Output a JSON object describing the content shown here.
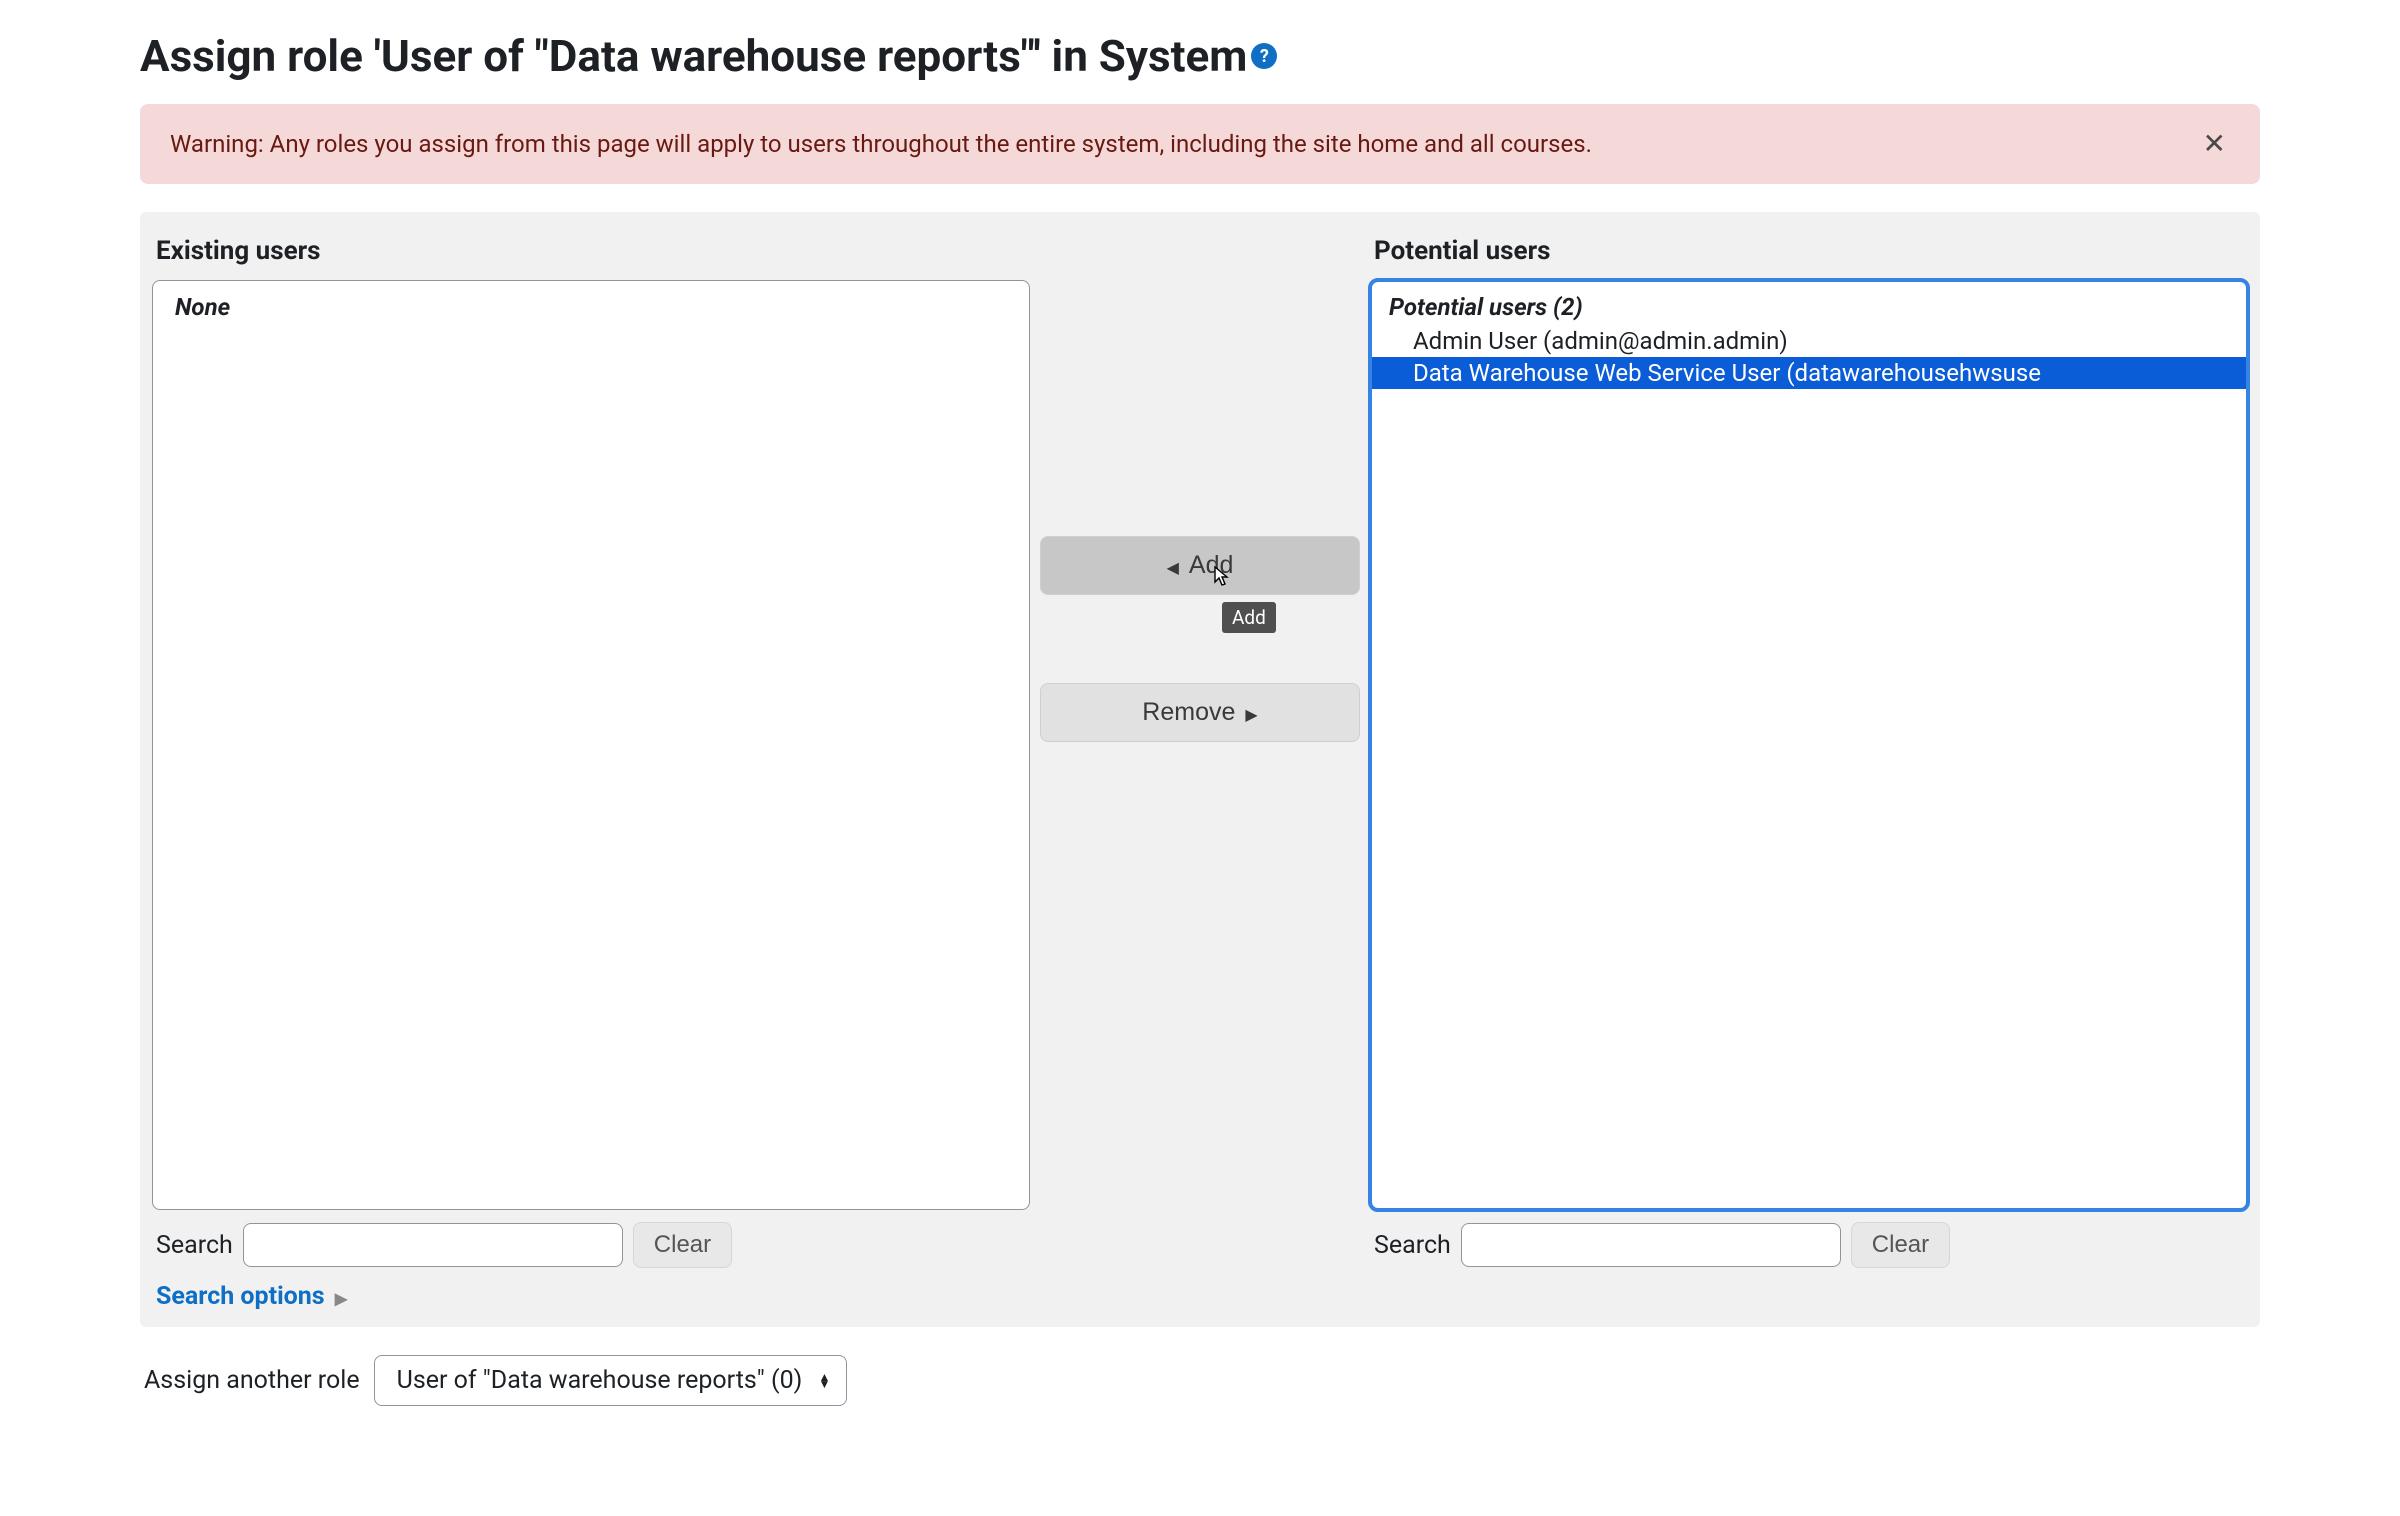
{
  "page": {
    "title": "Assign role 'User of \"Data warehouse reports\"' in System"
  },
  "alert": {
    "text": "Warning: Any roles you assign from this page will apply to users throughout the entire system, including the site home and all courses."
  },
  "existing": {
    "title": "Existing users",
    "none_label": "None",
    "search_label": "Search",
    "clear_label": "Clear"
  },
  "potential": {
    "title": "Potential users",
    "header": "Potential users (2)",
    "users": [
      {
        "label": "Admin User (admin@admin.admin)",
        "selected": false
      },
      {
        "label": "Data Warehouse Web Service User (datawarehousehwsuse",
        "selected": true
      }
    ],
    "search_label": "Search",
    "clear_label": "Clear"
  },
  "buttons": {
    "add_label": "Add",
    "remove_label": "Remove",
    "tooltip": "Add"
  },
  "search_options": {
    "label": "Search options"
  },
  "footer": {
    "label": "Assign another role",
    "select_value": "User of \"Data warehouse reports\" (0)"
  },
  "colors": {
    "alert_bg": "#f4d9d8",
    "alert_text": "#691911",
    "panel_bg": "#f1f1f1",
    "selection_bg": "#0b5cd7",
    "focus_ring": "#3584e4",
    "link": "#0f6fc5"
  }
}
